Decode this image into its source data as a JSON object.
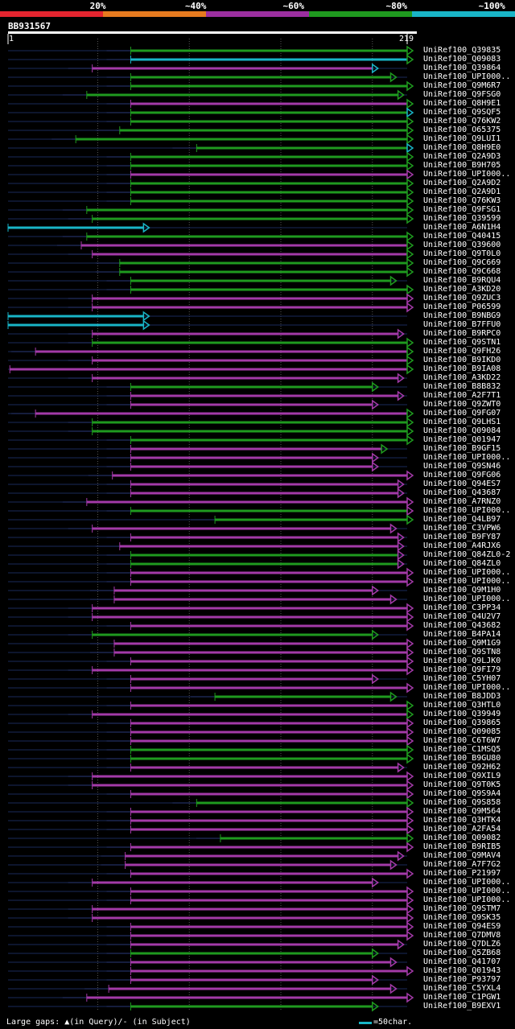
{
  "legend": {
    "labels": [
      {
        "text": "20%",
        "pos": 0.19
      },
      {
        "text": "~40%",
        "pos": 0.38
      },
      {
        "text": "~60%",
        "pos": 0.57
      },
      {
        "text": "~80%",
        "pos": 0.77
      },
      {
        "text": "~100%",
        "pos": 0.955
      }
    ],
    "colors": [
      "#e4252f",
      "#e67a1f",
      "#9c2fa0",
      "#1f9a1f",
      "#19b5c7"
    ]
  },
  "query": {
    "id": "BB931567",
    "start": "1",
    "end": "219",
    "length": 219
  },
  "footer": {
    "gap_note": "Large gaps: ▲(in Query)/- (in Subject)",
    "scale_note": "=50char."
  },
  "chart_data": {
    "type": "alignment",
    "title": "BB931567",
    "x_range": [
      1,
      219
    ],
    "color_key": {
      "red": "20%",
      "orange": "~40%",
      "purple": "~60%",
      "green": "~80%",
      "cyan": "~100%"
    },
    "hits": [
      {
        "name": "UniRef100_Q39835",
        "start": 68,
        "end": 219,
        "color": "green",
        "arrow": "green"
      },
      {
        "name": "UniRef100_Q09083",
        "start": 68,
        "end": 219,
        "color": "cyan",
        "arrow": "green"
      },
      {
        "name": "UniRef100_Q39864",
        "start": 47,
        "end": 200,
        "color": "purple",
        "arrow": "cyan"
      },
      {
        "name": "UniRef100_UPI000..",
        "start": 68,
        "end": 210,
        "color": "green",
        "arrow": "green"
      },
      {
        "name": "UniRef100_Q9M6R7",
        "start": 68,
        "end": 219,
        "color": "green",
        "arrow": "green"
      },
      {
        "name": "UniRef100_Q9FSG0",
        "start": 44,
        "end": 214,
        "color": "green",
        "arrow": "green"
      },
      {
        "name": "UniRef100_Q8H9E1",
        "start": 68,
        "end": 219,
        "color": "purple",
        "arrow": "green"
      },
      {
        "name": "UniRef100_Q9SQF5",
        "start": 68,
        "end": 219,
        "color": "green",
        "arrow": "cyan"
      },
      {
        "name": "UniRef100_Q76KW2",
        "start": 68,
        "end": 219,
        "color": "green",
        "arrow": "green"
      },
      {
        "name": "UniRef100_O65375",
        "start": 62,
        "end": 219,
        "color": "green",
        "arrow": "green"
      },
      {
        "name": "UniRef100_Q9LUI1",
        "start": 38,
        "end": 219,
        "color": "green",
        "arrow": "green"
      },
      {
        "name": "UniRef100_Q8H9E0",
        "start": 104,
        "end": 219,
        "color": "green",
        "arrow": "cyan"
      },
      {
        "name": "UniRef100_Q2A9D3",
        "start": 68,
        "end": 219,
        "color": "green",
        "arrow": "green"
      },
      {
        "name": "UniRef100_B9H705",
        "start": 68,
        "end": 219,
        "color": "green",
        "arrow": "green"
      },
      {
        "name": "UniRef100_UPI000..",
        "start": 68,
        "end": 219,
        "color": "purple",
        "arrow": "purple"
      },
      {
        "name": "UniRef100_Q2A9D2",
        "start": 68,
        "end": 219,
        "color": "green",
        "arrow": "green"
      },
      {
        "name": "UniRef100_Q2A9D1",
        "start": 68,
        "end": 219,
        "color": "green",
        "arrow": "green"
      },
      {
        "name": "UniRef100_Q76KW3",
        "start": 68,
        "end": 219,
        "color": "green",
        "arrow": "green"
      },
      {
        "name": "UniRef100_Q9FSG1",
        "start": 44,
        "end": 219,
        "color": "green",
        "arrow": "green"
      },
      {
        "name": "UniRef100_Q39599",
        "start": 47,
        "end": 219,
        "color": "green",
        "arrow": "green"
      },
      {
        "name": "UniRef100_A6N1H4",
        "start": 1,
        "end": 75,
        "color": "cyan",
        "arrow": "cyan"
      },
      {
        "name": "UniRef100_Q40415",
        "start": 44,
        "end": 219,
        "color": "green",
        "arrow": "green"
      },
      {
        "name": "UniRef100_Q39600",
        "start": 41,
        "end": 219,
        "color": "purple",
        "arrow": "green"
      },
      {
        "name": "UniRef100_Q9T0L0",
        "start": 47,
        "end": 219,
        "color": "purple",
        "arrow": "green"
      },
      {
        "name": "UniRef100_Q9C669",
        "start": 62,
        "end": 219,
        "color": "green",
        "arrow": "green"
      },
      {
        "name": "UniRef100_Q9C668",
        "start": 62,
        "end": 219,
        "color": "green",
        "arrow": "green"
      },
      {
        "name": "UniRef100_B9RQU4",
        "start": 68,
        "end": 210,
        "color": "green",
        "arrow": "green"
      },
      {
        "name": "UniRef100_A3KD20",
        "start": 68,
        "end": 219,
        "color": "green",
        "arrow": "green"
      },
      {
        "name": "UniRef100_Q9ZUC3",
        "start": 47,
        "end": 219,
        "color": "purple",
        "arrow": "purple"
      },
      {
        "name": "UniRef100_P06599",
        "start": 47,
        "end": 219,
        "color": "purple",
        "arrow": "purple"
      },
      {
        "name": "UniRef100_B9NBG9",
        "start": 1,
        "end": 75,
        "color": "cyan",
        "arrow": "cyan"
      },
      {
        "name": "UniRef100_B7FFU0",
        "start": 1,
        "end": 75,
        "color": "cyan",
        "arrow": "cyan"
      },
      {
        "name": "UniRef100_B9RPC0",
        "start": 47,
        "end": 214,
        "color": "purple",
        "arrow": "purple"
      },
      {
        "name": "UniRef100_Q9STN1",
        "start": 47,
        "end": 219,
        "color": "green",
        "arrow": "green"
      },
      {
        "name": "UniRef100_Q9FH26",
        "start": 16,
        "end": 219,
        "color": "purple",
        "arrow": "green"
      },
      {
        "name": "UniRef100_B9IKD0",
        "start": 47,
        "end": 219,
        "color": "purple",
        "arrow": "green"
      },
      {
        "name": "UniRef100_B9IA08",
        "start": 2,
        "end": 219,
        "color": "purple",
        "arrow": "green"
      },
      {
        "name": "UniRef100_A3KD22",
        "start": 47,
        "end": 214,
        "color": "purple",
        "arrow": "purple"
      },
      {
        "name": "UniRef100_B8B832",
        "start": 68,
        "end": 200,
        "color": "green",
        "arrow": "green"
      },
      {
        "name": "UniRef100_A2F7T1",
        "start": 68,
        "end": 214,
        "color": "purple",
        "arrow": "purple"
      },
      {
        "name": "UniRef100_Q9ZWT0",
        "start": 68,
        "end": 200,
        "color": "purple",
        "arrow": "purple"
      },
      {
        "name": "UniRef100_Q9FG07",
        "start": 16,
        "end": 219,
        "color": "purple",
        "arrow": "green"
      },
      {
        "name": "UniRef100_Q9LHS1",
        "start": 47,
        "end": 219,
        "color": "green",
        "arrow": "green"
      },
      {
        "name": "UniRef100_Q09084",
        "start": 47,
        "end": 219,
        "color": "green",
        "arrow": "green"
      },
      {
        "name": "UniRef100_Q01947",
        "start": 68,
        "end": 219,
        "color": "green",
        "arrow": "green"
      },
      {
        "name": "UniRef100_B9GF15",
        "start": 68,
        "end": 205,
        "color": "purple",
        "arrow": "green"
      },
      {
        "name": "UniRef100_UPI000..",
        "start": 68,
        "end": 200,
        "color": "purple",
        "arrow": "purple"
      },
      {
        "name": "UniRef100_Q9SN46",
        "start": 68,
        "end": 200,
        "color": "purple",
        "arrow": "purple"
      },
      {
        "name": "UniRef100_Q9FG06",
        "start": 58,
        "end": 219,
        "color": "purple",
        "arrow": "purple"
      },
      {
        "name": "UniRef100_Q94ES7",
        "start": 68,
        "end": 214,
        "color": "purple",
        "arrow": "purple"
      },
      {
        "name": "UniRef100_Q43687",
        "start": 68,
        "end": 214,
        "color": "purple",
        "arrow": "purple"
      },
      {
        "name": "UniRef100_A7RNZ0",
        "start": 44,
        "end": 219,
        "color": "purple",
        "arrow": "purple"
      },
      {
        "name": "UniRef100_UPI000..",
        "start": 68,
        "end": 219,
        "color": "green",
        "arrow": "purple"
      },
      {
        "name": "UniRef100_Q4LB97",
        "start": 114,
        "end": 219,
        "color": "green",
        "arrow": "green"
      },
      {
        "name": "UniRef100_C3VPW6",
        "start": 47,
        "end": 210,
        "color": "purple",
        "arrow": "purple"
      },
      {
        "name": "UniRef100_B9FY87",
        "start": 68,
        "end": 214,
        "color": "purple",
        "arrow": "purple"
      },
      {
        "name": "UniRef100_A4RJX6",
        "start": 62,
        "end": 214,
        "color": "purple",
        "arrow": "purple"
      },
      {
        "name": "UniRef100_Q84ZL0-2",
        "start": 68,
        "end": 214,
        "color": "green",
        "arrow": "purple"
      },
      {
        "name": "UniRef100_Q84ZL0",
        "start": 68,
        "end": 214,
        "color": "green",
        "arrow": "purple"
      },
      {
        "name": "UniRef100_UPI000..",
        "start": 68,
        "end": 219,
        "color": "purple",
        "arrow": "purple"
      },
      {
        "name": "UniRef100_UPI000..",
        "start": 68,
        "end": 219,
        "color": "purple",
        "arrow": "purple"
      },
      {
        "name": "UniRef100_Q9M1H0",
        "start": 59,
        "end": 200,
        "color": "purple",
        "arrow": "purple"
      },
      {
        "name": "UniRef100_UPI000..",
        "start": 59,
        "end": 210,
        "color": "purple",
        "arrow": "purple"
      },
      {
        "name": "UniRef100_C3PP34",
        "start": 47,
        "end": 219,
        "color": "purple",
        "arrow": "purple"
      },
      {
        "name": "UniRef100_Q4U2V7",
        "start": 47,
        "end": 219,
        "color": "purple",
        "arrow": "purple"
      },
      {
        "name": "UniRef100_Q43682",
        "start": 68,
        "end": 219,
        "color": "purple",
        "arrow": "purple"
      },
      {
        "name": "UniRef100_B4PA14",
        "start": 47,
        "end": 200,
        "color": "green",
        "arrow": "green"
      },
      {
        "name": "UniRef100_Q9M1G9",
        "start": 59,
        "end": 219,
        "color": "purple",
        "arrow": "purple"
      },
      {
        "name": "UniRef100_Q9STN8",
        "start": 59,
        "end": 219,
        "color": "purple",
        "arrow": "purple"
      },
      {
        "name": "UniRef100_Q9LJK0",
        "start": 68,
        "end": 219,
        "color": "purple",
        "arrow": "purple"
      },
      {
        "name": "UniRef100_Q9FI79",
        "start": 47,
        "end": 219,
        "color": "purple",
        "arrow": "purple"
      },
      {
        "name": "UniRef100_C5YH07",
        "start": 68,
        "end": 200,
        "color": "purple",
        "arrow": "purple"
      },
      {
        "name": "UniRef100_UPI000..",
        "start": 68,
        "end": 219,
        "color": "purple",
        "arrow": "purple"
      },
      {
        "name": "UniRef100_B8JDD3",
        "start": 114,
        "end": 210,
        "color": "green",
        "arrow": "green"
      },
      {
        "name": "UniRef100_Q3HTL0",
        "start": 68,
        "end": 219,
        "color": "purple",
        "arrow": "green"
      },
      {
        "name": "UniRef100_Q39949",
        "start": 47,
        "end": 219,
        "color": "purple",
        "arrow": "green"
      },
      {
        "name": "UniRef100_Q39865",
        "start": 68,
        "end": 219,
        "color": "purple",
        "arrow": "purple"
      },
      {
        "name": "UniRef100_Q09085",
        "start": 68,
        "end": 219,
        "color": "purple",
        "arrow": "purple"
      },
      {
        "name": "UniRef100_C6T6W7",
        "start": 68,
        "end": 219,
        "color": "purple",
        "arrow": "purple"
      },
      {
        "name": "UniRef100_C1MSQ5",
        "start": 68,
        "end": 219,
        "color": "green",
        "arrow": "green"
      },
      {
        "name": "UniRef100_B9GU80",
        "start": 68,
        "end": 219,
        "color": "green",
        "arrow": "green"
      },
      {
        "name": "UniRef100_Q92H62",
        "start": 68,
        "end": 214,
        "color": "purple",
        "arrow": "purple"
      },
      {
        "name": "UniRef100_Q9XIL9",
        "start": 47,
        "end": 219,
        "color": "purple",
        "arrow": "purple"
      },
      {
        "name": "UniRef100_Q9T0K5",
        "start": 47,
        "end": 219,
        "color": "purple",
        "arrow": "purple"
      },
      {
        "name": "UniRef100_Q9S9A4",
        "start": 68,
        "end": 219,
        "color": "purple",
        "arrow": "purple"
      },
      {
        "name": "UniRef100_Q9S858",
        "start": 104,
        "end": 219,
        "color": "green",
        "arrow": "green"
      },
      {
        "name": "UniRef100_Q9M564",
        "start": 68,
        "end": 219,
        "color": "purple",
        "arrow": "purple"
      },
      {
        "name": "UniRef100_Q3HTK4",
        "start": 68,
        "end": 219,
        "color": "purple",
        "arrow": "purple"
      },
      {
        "name": "UniRef100_A2FA54",
        "start": 68,
        "end": 219,
        "color": "purple",
        "arrow": "purple"
      },
      {
        "name": "UniRef100_Q09082",
        "start": 117,
        "end": 219,
        "color": "green",
        "arrow": "green"
      },
      {
        "name": "UniRef100_B9RIB5",
        "start": 68,
        "end": 219,
        "color": "purple",
        "arrow": "purple"
      },
      {
        "name": "UniRef100_Q9MAV4",
        "start": 65,
        "end": 214,
        "color": "purple",
        "arrow": "purple"
      },
      {
        "name": "UniRef100_A7F7G2",
        "start": 65,
        "end": 210,
        "color": "purple",
        "arrow": "purple"
      },
      {
        "name": "UniRef100_P21997",
        "start": 68,
        "end": 219,
        "color": "purple",
        "arrow": "purple"
      },
      {
        "name": "UniRef100_UPI000..",
        "start": 47,
        "end": 200,
        "color": "purple",
        "arrow": "purple"
      },
      {
        "name": "UniRef100_UPI000..",
        "start": 68,
        "end": 219,
        "color": "purple",
        "arrow": "purple"
      },
      {
        "name": "UniRef100_UPI000..",
        "start": 68,
        "end": 219,
        "color": "purple",
        "arrow": "purple"
      },
      {
        "name": "UniRef100_Q9STM7",
        "start": 47,
        "end": 219,
        "color": "purple",
        "arrow": "purple"
      },
      {
        "name": "UniRef100_Q9SK35",
        "start": 47,
        "end": 219,
        "color": "purple",
        "arrow": "purple"
      },
      {
        "name": "UniRef100_Q94ES9",
        "start": 68,
        "end": 219,
        "color": "purple",
        "arrow": "purple"
      },
      {
        "name": "UniRef100_Q7DMV8",
        "start": 68,
        "end": 219,
        "color": "purple",
        "arrow": "purple"
      },
      {
        "name": "UniRef100_Q7DLZ6",
        "start": 68,
        "end": 214,
        "color": "purple",
        "arrow": "purple"
      },
      {
        "name": "UniRef100_Q5ZB68",
        "start": 68,
        "end": 200,
        "color": "green",
        "arrow": "green"
      },
      {
        "name": "UniRef100_Q41707",
        "start": 68,
        "end": 210,
        "color": "purple",
        "arrow": "purple"
      },
      {
        "name": "UniRef100_Q01943",
        "start": 68,
        "end": 219,
        "color": "purple",
        "arrow": "purple"
      },
      {
        "name": "UniRef100_P93797",
        "start": 68,
        "end": 200,
        "color": "purple",
        "arrow": "purple"
      },
      {
        "name": "UniRef100_C5YXL4",
        "start": 56,
        "end": 210,
        "color": "purple",
        "arrow": "purple"
      },
      {
        "name": "UniRef100_C1PGW1",
        "start": 44,
        "end": 219,
        "color": "purple",
        "arrow": "purple"
      },
      {
        "name": "UniRef100_B9EXV1",
        "start": 68,
        "end": 200,
        "color": "green",
        "arrow": "green"
      }
    ]
  }
}
